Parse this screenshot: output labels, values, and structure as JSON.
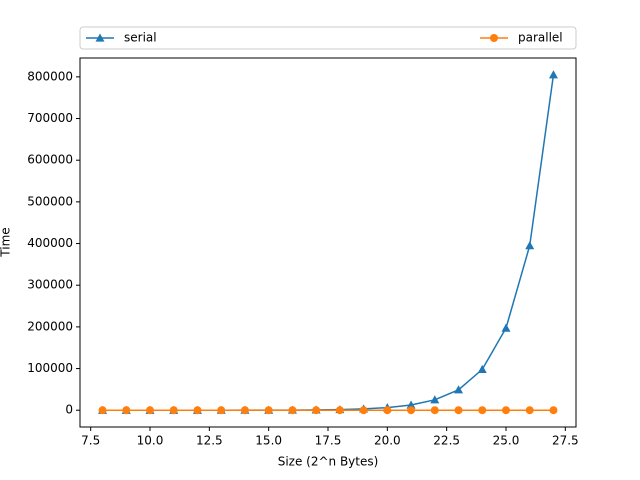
{
  "chart_data": {
    "type": "line",
    "x_label": "Size (2^n Bytes)",
    "y_label": "Time",
    "x": [
      8,
      9,
      10,
      11,
      12,
      13,
      14,
      15,
      16,
      17,
      18,
      19,
      20,
      21,
      22,
      23,
      24,
      25,
      26,
      27
    ],
    "series": [
      {
        "name": "serial",
        "color": "#1f77b4",
        "marker": "triangle",
        "values": [
          2,
          3,
          6,
          12,
          25,
          50,
          100,
          200,
          390,
          780,
          1550,
          3100,
          6200,
          12500,
          25000,
          49000,
          98000,
          197000,
          395000,
          805000
        ]
      },
      {
        "name": "parallel",
        "color": "#ff7f0e",
        "marker": "circle",
        "values": [
          0,
          0,
          0,
          0,
          0,
          0,
          0,
          0,
          0,
          0,
          0,
          0,
          0,
          0,
          0,
          0,
          0,
          0,
          0,
          0
        ]
      }
    ],
    "xlim": [
      7.05,
      27.95
    ],
    "xticks": [
      7.5,
      {
        "value": 10,
        "label": "10.0"
      },
      12.5,
      {
        "value": 15,
        "label": "15.0"
      },
      17.5,
      {
        "value": 20,
        "label": "20.0"
      },
      22.5,
      {
        "value": 25,
        "label": "25.0"
      },
      27.5
    ],
    "ylim": [
      -40250,
      845250
    ],
    "yticks": [
      0,
      100000,
      200000,
      300000,
      400000,
      500000,
      600000,
      700000,
      800000
    ],
    "legend": "above",
    "grid": false
  }
}
